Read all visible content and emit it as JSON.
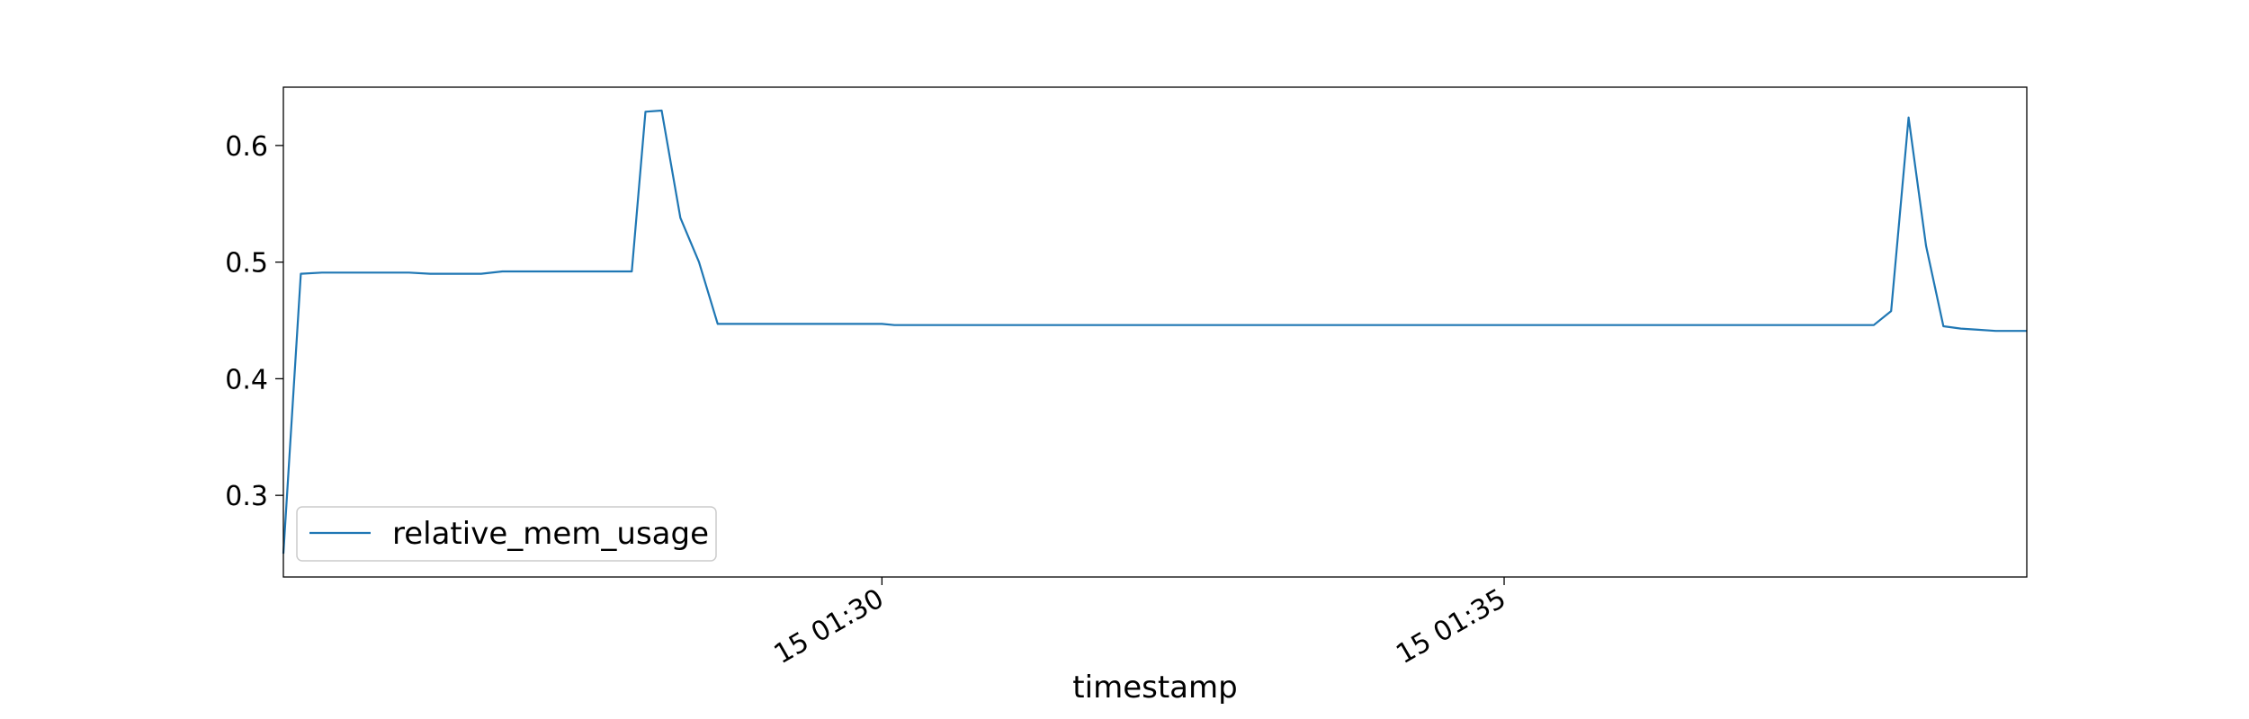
{
  "chart_data": {
    "type": "line",
    "xlabel": "timestamp",
    "ylabel": "",
    "title": "",
    "x_tick_labels": [
      "15 01:30",
      "15 01:35"
    ],
    "y_tick_labels": [
      "0.3",
      "0.4",
      "0.5",
      "0.6"
    ],
    "y_ticks": [
      0.3,
      0.4,
      0.5,
      0.6
    ],
    "ylim": [
      0.23,
      0.65
    ],
    "x_unit": "minutes past 15 01:25",
    "x_ticks": [
      5,
      10
    ],
    "xlim": [
      0.19,
      14.2
    ],
    "legend": {
      "placement": "lower-left",
      "entries": [
        "relative_mem_usage"
      ]
    },
    "grid": false,
    "series": [
      {
        "name": "relative_mem_usage",
        "color": "#1f77b4",
        "points": [
          [
            0.19,
            0.25
          ],
          [
            0.33,
            0.49
          ],
          [
            0.5,
            0.491
          ],
          [
            0.67,
            0.491
          ],
          [
            0.85,
            0.491
          ],
          [
            1.02,
            0.491
          ],
          [
            1.2,
            0.491
          ],
          [
            1.37,
            0.49
          ],
          [
            1.54,
            0.49
          ],
          [
            1.71,
            0.49
          ],
          [
            1.78,
            0.49
          ],
          [
            1.95,
            0.492
          ],
          [
            2.12,
            0.492
          ],
          [
            2.3,
            0.492
          ],
          [
            2.47,
            0.492
          ],
          [
            2.64,
            0.492
          ],
          [
            2.81,
            0.492
          ],
          [
            2.99,
            0.492
          ],
          [
            3.1,
            0.629
          ],
          [
            3.23,
            0.63
          ],
          [
            3.38,
            0.538
          ],
          [
            3.53,
            0.5
          ],
          [
            3.68,
            0.447
          ],
          [
            3.9,
            0.447
          ],
          [
            4.2,
            0.447
          ],
          [
            4.6,
            0.447
          ],
          [
            5.0,
            0.447
          ],
          [
            5.1,
            0.446
          ],
          [
            5.5,
            0.446
          ],
          [
            6.0,
            0.446
          ],
          [
            6.5,
            0.446
          ],
          [
            7.0,
            0.446
          ],
          [
            7.5,
            0.446
          ],
          [
            8.0,
            0.446
          ],
          [
            8.5,
            0.446
          ],
          [
            9.0,
            0.446
          ],
          [
            9.5,
            0.446
          ],
          [
            10.0,
            0.446
          ],
          [
            10.5,
            0.446
          ],
          [
            11.0,
            0.446
          ],
          [
            11.5,
            0.446
          ],
          [
            12.0,
            0.446
          ],
          [
            12.5,
            0.446
          ],
          [
            12.97,
            0.446
          ],
          [
            13.11,
            0.458
          ],
          [
            13.25,
            0.624
          ],
          [
            13.39,
            0.514
          ],
          [
            13.53,
            0.445
          ],
          [
            13.67,
            0.443
          ],
          [
            13.81,
            0.442
          ],
          [
            13.95,
            0.441
          ],
          [
            14.1,
            0.441
          ],
          [
            14.2,
            0.441
          ]
        ]
      }
    ]
  }
}
